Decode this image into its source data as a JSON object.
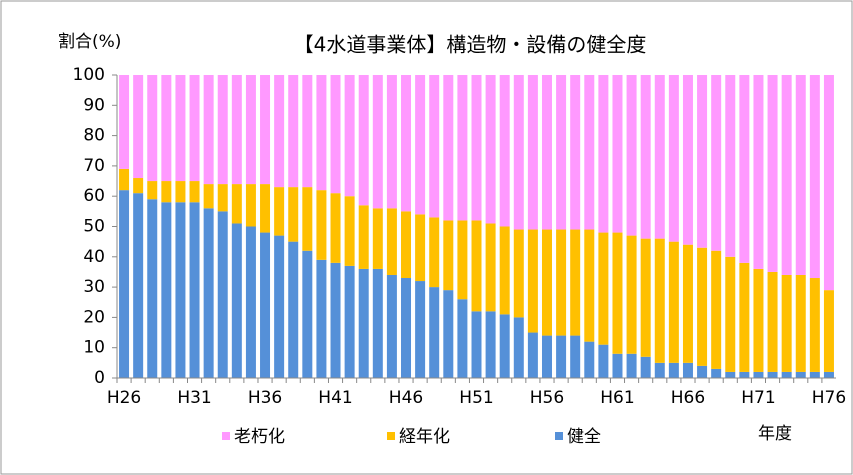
{
  "chart_data": {
    "type": "stacked_bar",
    "title": "【4水道事業体】構造物・設備の健全度",
    "y_label": "割合(%)",
    "x_label": "年度",
    "categories": [
      "H26",
      null,
      null,
      null,
      null,
      "H31",
      null,
      null,
      null,
      null,
      "H36",
      null,
      null,
      null,
      null,
      "H41",
      null,
      null,
      null,
      null,
      "H46",
      null,
      null,
      null,
      null,
      "H51",
      null,
      null,
      null,
      null,
      "H56",
      null,
      null,
      null,
      null,
      "H61",
      null,
      null,
      null,
      null,
      "H66",
      null,
      null,
      null,
      null,
      "H71",
      null,
      null,
      null,
      null,
      "H76"
    ],
    "series": [
      {
        "name": "健全",
        "color": "#5590d8",
        "values": [
          62,
          61,
          59,
          58,
          58,
          58,
          56,
          55,
          51,
          50,
          48,
          47,
          45,
          42,
          39,
          38,
          37,
          36,
          36,
          34,
          33,
          32,
          30,
          29,
          26,
          22,
          22,
          21,
          20,
          15,
          14,
          14,
          14,
          12,
          11,
          8,
          8,
          7,
          5,
          5,
          5,
          4,
          3,
          2,
          2,
          2,
          2,
          2,
          2,
          2,
          2
        ]
      },
      {
        "name": "経年化",
        "color": "#ffc000",
        "values": [
          7,
          5,
          6,
          7,
          7,
          7,
          8,
          9,
          13,
          14,
          16,
          16,
          18,
          21,
          23,
          23,
          23,
          21,
          20,
          22,
          22,
          22,
          23,
          23,
          26,
          30,
          29,
          29,
          29,
          34,
          35,
          35,
          35,
          37,
          37,
          40,
          39,
          39,
          41,
          40,
          39,
          39,
          39,
          38,
          36,
          34,
          33,
          32,
          32,
          31,
          27
        ]
      },
      {
        "name": "老朽化",
        "color": "#ff99ff",
        "values": [
          31,
          34,
          35,
          35,
          35,
          35,
          36,
          36,
          36,
          36,
          36,
          37,
          37,
          37,
          38,
          39,
          40,
          43,
          44,
          44,
          45,
          46,
          47,
          48,
          48,
          48,
          49,
          50,
          51,
          51,
          51,
          51,
          51,
          51,
          52,
          52,
          53,
          54,
          54,
          55,
          56,
          57,
          58,
          60,
          62,
          64,
          65,
          66,
          66,
          67,
          71
        ]
      }
    ],
    "ylim": [
      0,
      100
    ],
    "yticks": [
      0,
      10,
      20,
      30,
      40,
      50,
      60,
      70,
      80,
      90,
      100
    ],
    "legend": "bottom"
  }
}
